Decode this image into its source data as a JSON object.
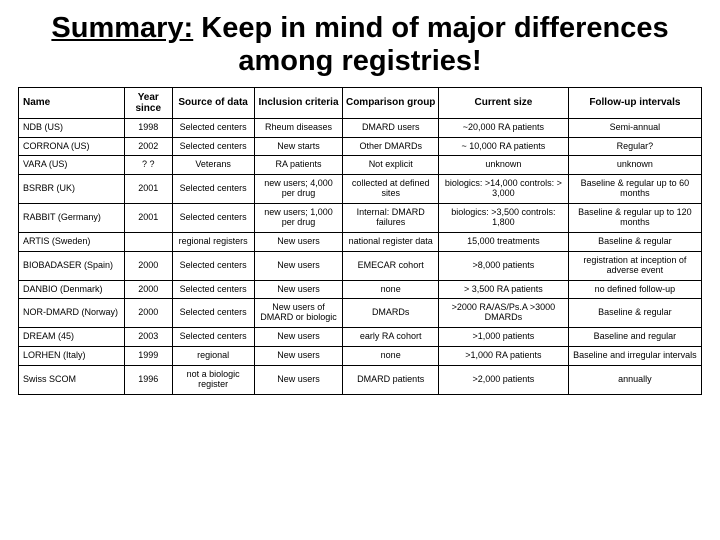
{
  "title_underlined": "Summary:",
  "title_rest": " Keep in mind of major differences among registries!",
  "columns": [
    "Name",
    "Year since",
    "Source of data",
    "Inclusion criteria",
    "Comparison group",
    "Current size",
    "Follow-up intervals"
  ],
  "rows": [
    {
      "name": "NDB (US)",
      "year": "1998",
      "source": "Selected centers",
      "inclusion": "Rheum diseases",
      "comparison": "DMARD users",
      "size": "~20,000 RA patients",
      "follow": "Semi-annual"
    },
    {
      "name": "CORRONA (US)",
      "year": "2002",
      "source": "Selected centers",
      "inclusion": "New starts",
      "comparison": "Other DMARDs",
      "size": "~ 10,000 RA patients",
      "follow": "Regular?"
    },
    {
      "name": "VARA (US)",
      "year": "? ?",
      "source": "Veterans",
      "inclusion": "RA patients",
      "comparison": "Not explicit",
      "size": "unknown",
      "follow": "unknown"
    },
    {
      "name": "BSRBR (UK)",
      "year": "2001",
      "source": "Selected centers",
      "inclusion": "new users; 4,000 per drug",
      "comparison": "collected at defined sites",
      "size": "biologics: >14,000 controls: > 3,000",
      "follow": "Baseline & regular up to 60 months"
    },
    {
      "name": "RABBIT (Germany)",
      "year": "2001",
      "source": "Selected centers",
      "inclusion": "new users; 1,000 per drug",
      "comparison": "Internal: DMARD failures",
      "size": "biologics: >3,500 controls: 1,800",
      "follow": "Baseline & regular up to 120 months"
    },
    {
      "name": "ARTIS (Sweden)",
      "year": "",
      "source": "regional registers",
      "inclusion": "New users",
      "comparison": "national register data",
      "size": "15,000 treatments",
      "follow": "Baseline & regular"
    },
    {
      "name": "BIOBADASER (Spain)",
      "year": "2000",
      "source": "Selected centers",
      "inclusion": "New users",
      "comparison": "EMECAR cohort",
      "size": ">8,000 patients",
      "follow": "registration at inception of adverse event"
    },
    {
      "name": "DANBIO (Denmark)",
      "year": "2000",
      "source": "Selected centers",
      "inclusion": "New users",
      "comparison": "none",
      "size": "> 3,500 RA patients",
      "follow": "no defined follow-up"
    },
    {
      "name": "NOR-DMARD (Norway)",
      "year": "2000",
      "source": "Selected centers",
      "inclusion": "New users of DMARD or biologic",
      "comparison": "DMARDs",
      "size": ">2000 RA/AS/Ps.A >3000 DMARDs",
      "follow": "Baseline & regular"
    },
    {
      "name": "DREAM (45)",
      "year": "2003",
      "source": "Selected centers",
      "inclusion": "New users",
      "comparison": "early RA cohort",
      "size": ">1,000 patients",
      "follow": "Baseline and regular"
    },
    {
      "name": "LORHEN (Italy)",
      "year": "1999",
      "source": "regional",
      "inclusion": "New users",
      "comparison": "none",
      "size": ">1,000 RA patients",
      "follow": "Baseline and irregular intervals"
    },
    {
      "name": "Swiss SCOM",
      "year": "1996",
      "source": "not a biologic register",
      "inclusion": "New users",
      "comparison": "DMARD patients",
      "size": ">2,000 patients",
      "follow": "annually"
    }
  ]
}
